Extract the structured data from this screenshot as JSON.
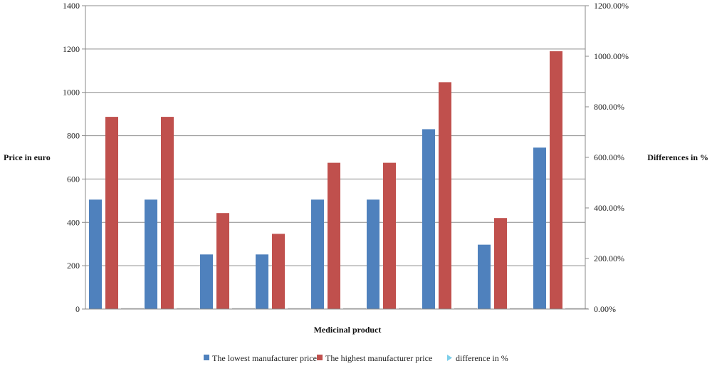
{
  "chart_data": {
    "type": "bar",
    "title": "",
    "xlabel": "Medicinal product",
    "ylabel": "Price in euro",
    "y2label": "Differences in %",
    "ylim": [
      0,
      1400
    ],
    "y2lim": [
      0,
      1200
    ],
    "yticks": [
      "0",
      "200",
      "400",
      "600",
      "800",
      "1000",
      "1200",
      "1400"
    ],
    "y2ticks": [
      "0.00%",
      "200.00%",
      "400.00%",
      "600.00%",
      "800.00%",
      "1000.00%",
      "1200.00%"
    ],
    "categories": [
      "",
      "",
      "",
      "",
      "",
      "",
      "",
      "",
      ""
    ],
    "grid": true,
    "legend_position": "bottom",
    "series": [
      {
        "name": "The lowest manufacturer price",
        "color": "#4F81BD",
        "values": [
          505,
          505,
          252,
          252,
          505,
          505,
          830,
          297,
          745
        ]
      },
      {
        "name": "The highest manufacturer price",
        "color": "#C0504D",
        "values": [
          887,
          887,
          443,
          347,
          675,
          675,
          1047,
          420,
          1190
        ]
      },
      {
        "name": "difference in %",
        "color": "#7ECFEA",
        "axis": "right",
        "values": [
          0,
          0,
          0,
          0,
          0,
          0,
          0,
          0,
          0
        ]
      }
    ]
  }
}
